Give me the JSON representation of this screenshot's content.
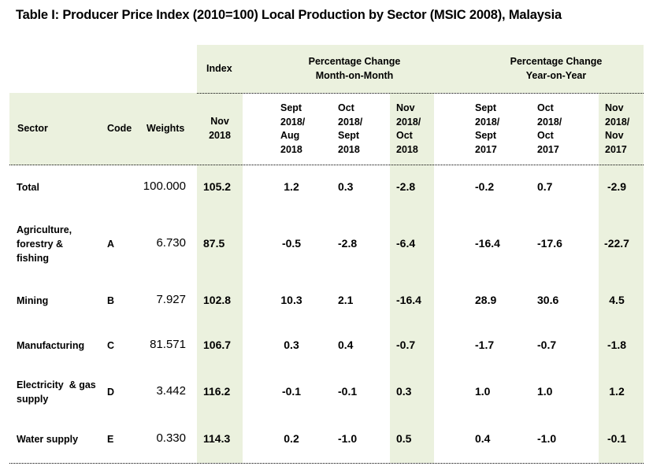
{
  "title": "Table I: Producer Price Index (2010=100) Local Production by Sector (MSIC 2008), Malaysia",
  "group_headers": {
    "index": "Index",
    "mom_line1": "Percentage Change",
    "mom_line2": "Month-on-Month",
    "yoy_line1": "Percentage Change",
    "yoy_line2": "Year-on-Year"
  },
  "columns": {
    "sector": "Sector",
    "code": "Code",
    "weights": "Weights",
    "index": [
      "Nov",
      "2018"
    ],
    "mom1": [
      "Sept",
      "2018/",
      "Aug",
      "2018"
    ],
    "mom2": [
      "Oct",
      "2018/",
      "Sept",
      "2018"
    ],
    "mom3": [
      "Nov",
      "2018/",
      "Oct",
      "2018"
    ],
    "yoy1": [
      "Sept",
      "2018/",
      "Sept",
      "2017"
    ],
    "yoy2": [
      "Oct",
      "2018/",
      "Oct",
      "2017"
    ],
    "yoy3": [
      "Nov",
      "2018/",
      "Nov",
      "2017"
    ]
  },
  "rows": [
    {
      "sector": [
        "Total"
      ],
      "code": "",
      "weights": "100.000",
      "index": "105.2",
      "mom1": "1.2",
      "mom2": "0.3",
      "mom3": "-2.8",
      "yoy1": "-0.2",
      "yoy2": "0.7",
      "yoy3": "-2.9"
    },
    {
      "sector": [
        "Agriculture,",
        "forestry &",
        "fishing"
      ],
      "code": "A",
      "weights": "6.730",
      "index": "87.5",
      "mom1": "-0.5",
      "mom2": "-2.8",
      "mom3": "-6.4",
      "yoy1": "-16.4",
      "yoy2": "-17.6",
      "yoy3": "-22.7"
    },
    {
      "sector": [
        "Mining"
      ],
      "code": "B",
      "weights": "7.927",
      "index": "102.8",
      "mom1": "10.3",
      "mom2": "2.1",
      "mom3": "-16.4",
      "yoy1": "28.9",
      "yoy2": "30.6",
      "yoy3": "4.5"
    },
    {
      "sector": [
        "Manufacturing"
      ],
      "code": "C",
      "weights": "81.571",
      "index": "106.7",
      "mom1": "0.3",
      "mom2": "0.4",
      "mom3": "-0.7",
      "yoy1": "-1.7",
      "yoy2": "-0.7",
      "yoy3": "-1.8"
    },
    {
      "sector": [
        "Electricity  & gas",
        "supply"
      ],
      "code": "D",
      "weights": "3.442",
      "index": "116.2",
      "mom1": "-0.1",
      "mom2": "-0.1",
      "mom3": "0.3",
      "yoy1": "1.0",
      "yoy2": "1.0",
      "yoy3": "1.2"
    },
    {
      "sector": [
        "Water supply"
      ],
      "code": "E",
      "weights": "0.330",
      "index": "114.3",
      "mom1": "0.2",
      "mom2": "-1.0",
      "mom3": "0.5",
      "yoy1": "0.4",
      "yoy2": "-1.0",
      "yoy3": "-0.1"
    }
  ],
  "colors": {
    "highlight": "#ebf1de"
  }
}
